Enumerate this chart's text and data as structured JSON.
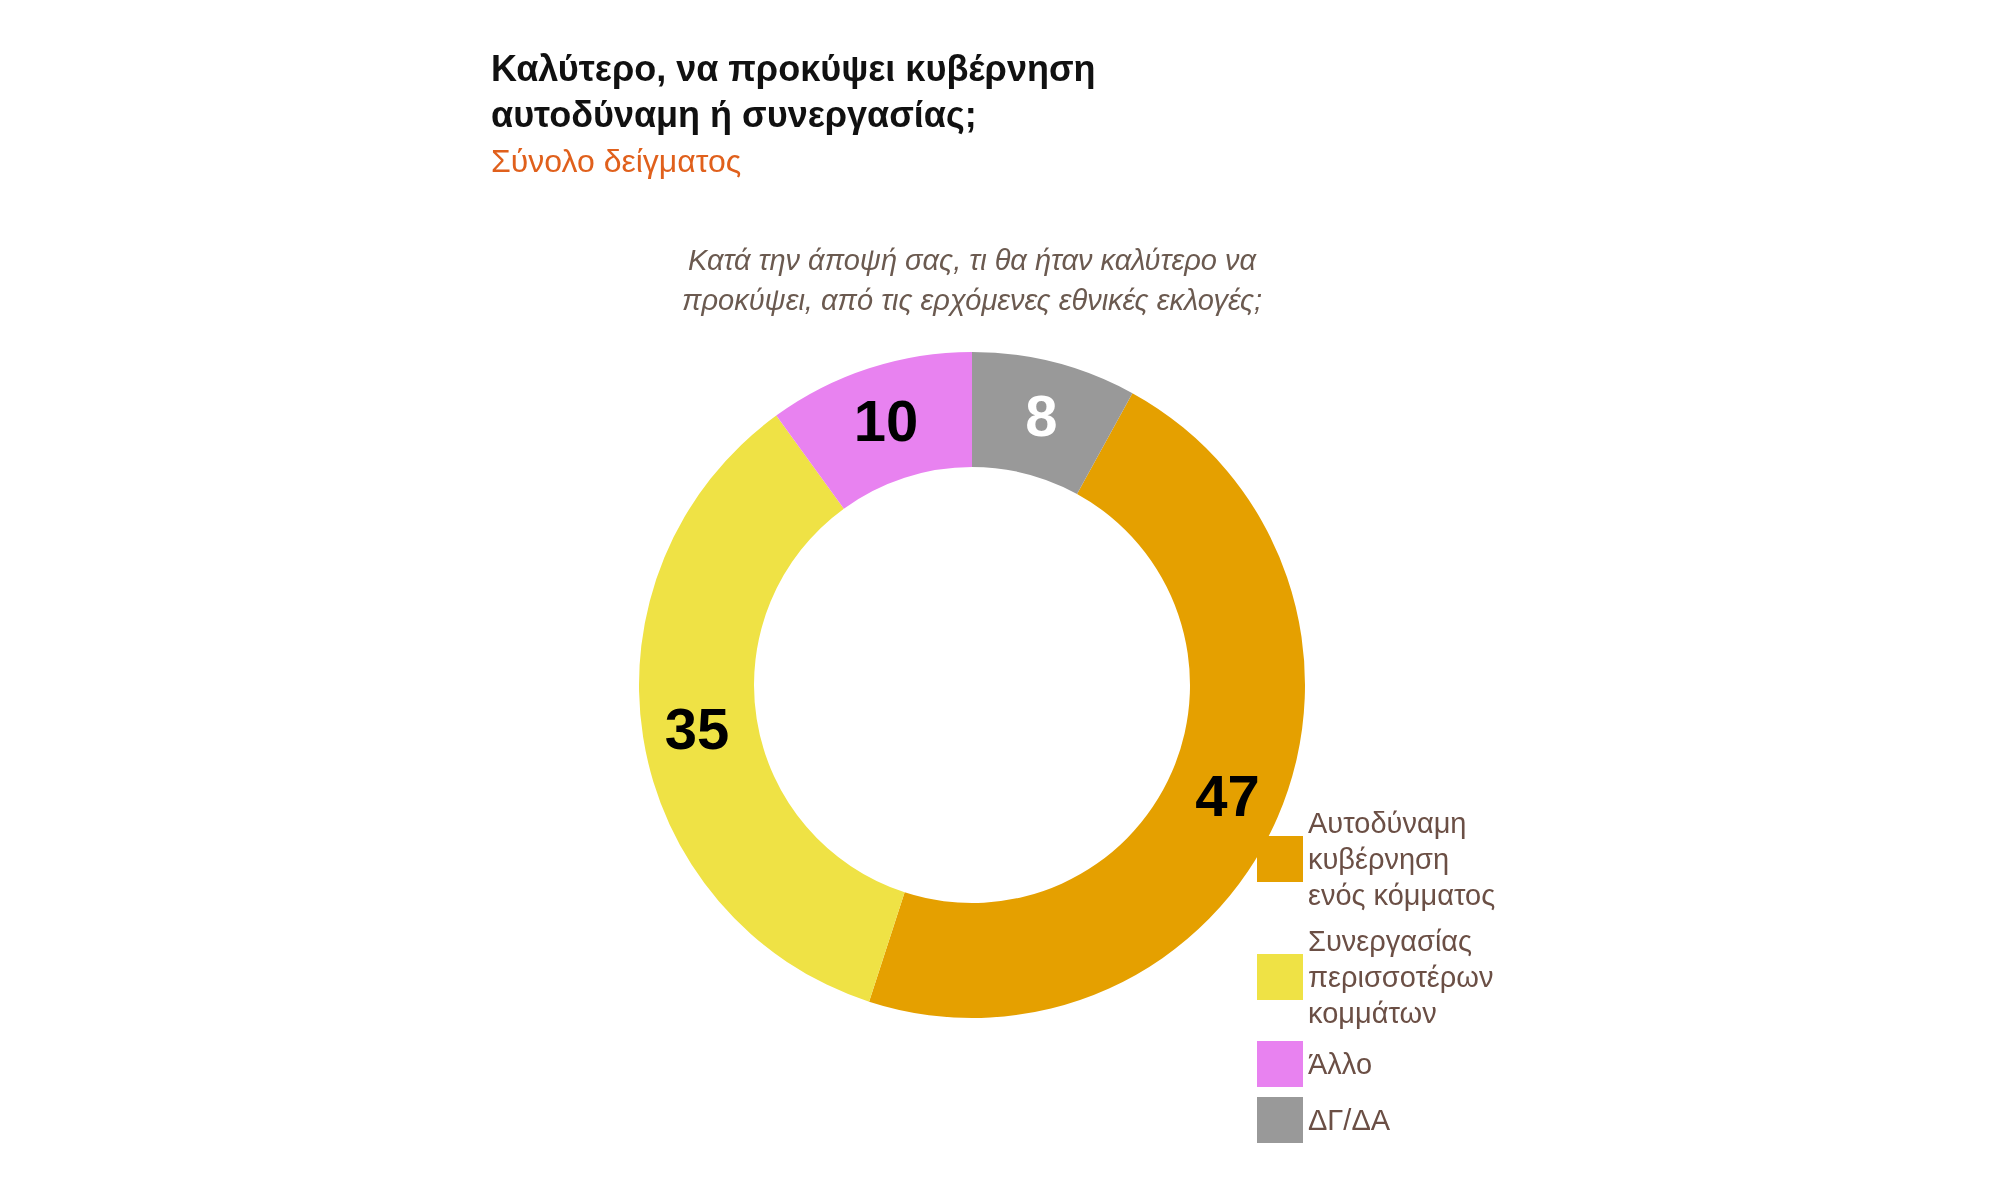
{
  "chart_data": {
    "type": "donut",
    "title": "Καλύτερο, να προκύψει κυβέρνηση αυτοδύναμη ή συνεργασίας;",
    "subtitle": "Σύνολο δείγματος",
    "annotations": [
      "Κατά την άποψή σας, τι θα ήταν καλύτερο να προκύψει, από τις ερχόμενες εθνικές εκλογές;"
    ],
    "categories": [
      "Αυτοδύναμη κυβέρνηση ενός κόμματος",
      "Συνεργασίας περισσοτέρων κομμάτων",
      "Άλλο",
      "ΔΓ/ΔΑ"
    ],
    "values": [
      47,
      35,
      10,
      8
    ],
    "colors": [
      "#e5a000",
      "#efe245",
      "#e882f0",
      "#999999"
    ],
    "data_labels": true,
    "legend": "bottom right"
  }
}
